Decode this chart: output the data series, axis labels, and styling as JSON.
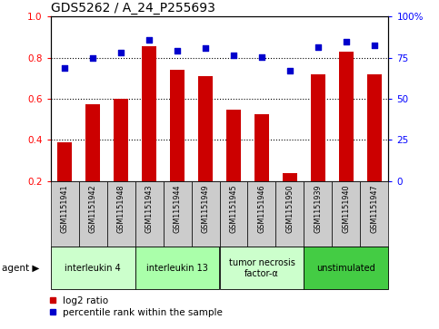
{
  "title": "GDS5262 / A_24_P255693",
  "samples": [
    "GSM1151941",
    "GSM1151942",
    "GSM1151948",
    "GSM1151943",
    "GSM1151944",
    "GSM1151949",
    "GSM1151945",
    "GSM1151946",
    "GSM1151950",
    "GSM1151939",
    "GSM1151940",
    "GSM1151947"
  ],
  "log2_ratio": [
    0.39,
    0.575,
    0.6,
    0.855,
    0.74,
    0.71,
    0.545,
    0.525,
    0.24,
    0.72,
    0.83,
    0.72
  ],
  "percentile_rank": [
    68.5,
    74.5,
    78.0,
    85.5,
    79.0,
    81.0,
    76.5,
    75.5,
    67.0,
    81.5,
    84.5,
    82.5
  ],
  "agents": [
    {
      "label": "interleukin 4",
      "start": 0,
      "end": 3,
      "color": "#ccffcc"
    },
    {
      "label": "interleukin 13",
      "start": 3,
      "end": 6,
      "color": "#aaffaa"
    },
    {
      "label": "tumor necrosis\nfactor-α",
      "start": 6,
      "end": 9,
      "color": "#ccffcc"
    },
    {
      "label": "unstimulated",
      "start": 9,
      "end": 12,
      "color": "#44cc44"
    }
  ],
  "bar_color": "#cc0000",
  "point_color": "#0000cc",
  "ylim_left": [
    0.2,
    1.0
  ],
  "ylim_right": [
    0,
    100
  ],
  "yticks_left": [
    0.2,
    0.4,
    0.6,
    0.8,
    1.0
  ],
  "yticks_right": [
    0,
    25,
    50,
    75,
    100
  ],
  "bar_width": 0.5,
  "agent_label": "agent",
  "legend_log2": "log2 ratio",
  "legend_pct": "percentile rank within the sample",
  "sample_box_color": "#cccccc",
  "grid_lines": [
    0.4,
    0.6,
    0.8
  ]
}
